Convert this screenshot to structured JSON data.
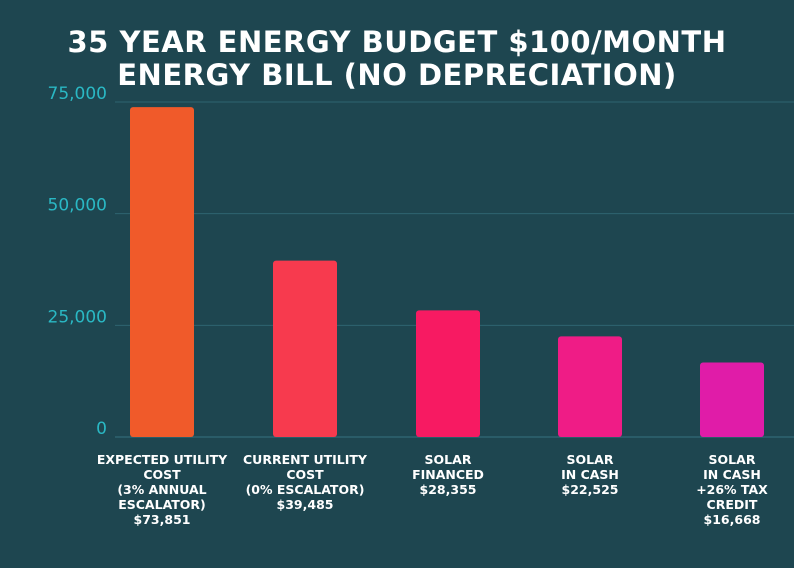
{
  "title_lines": [
    "35 YEAR ENERGY BUDGET $100/MONTH",
    "ENERGY BILL (NO DEPRECIATION)"
  ],
  "colors": {
    "background": "#1e4650",
    "grid": "#2f6470",
    "tick_label": "#2ab8c4",
    "bars": [
      "#f05a2a",
      "#f73a4e",
      "#f71a62",
      "#ef1c86",
      "#e01ca8"
    ]
  },
  "chart_data": {
    "type": "bar",
    "title": "35 YEAR ENERGY BUDGET $100/MONTH ENERGY BILL (NO DEPRECIATION)",
    "categories": [
      "EXPECTED UTILITY COST (3% ANNUAL ESCALATOR)",
      "CURRENT UTILITY COST (0% ESCALATOR)",
      "SOLAR FINANCED",
      "SOLAR IN CASH",
      "SOLAR IN CASH +26% TAX CREDIT"
    ],
    "category_label_lines": [
      [
        "EXPECTED UTILITY",
        "COST",
        "(3% ANNUAL",
        "ESCALATOR)",
        "$73,851"
      ],
      [
        "CURRENT UTILITY",
        "COST",
        "(0% ESCALATOR)",
        "$39,485"
      ],
      [
        "SOLAR",
        "FINANCED",
        "$28,355"
      ],
      [
        "SOLAR",
        "IN CASH",
        "$22,525"
      ],
      [
        "SOLAR",
        "IN CASH",
        "+26% TAX",
        "CREDIT",
        "$16,668"
      ]
    ],
    "values": [
      73851,
      39485,
      28355,
      22525,
      16668
    ],
    "yticks": [
      0,
      25000,
      50000,
      75000
    ],
    "ytick_labels": [
      "0",
      "25,000",
      "50,000",
      "75,000"
    ],
    "ylim": [
      0,
      75000
    ],
    "xlabel": "",
    "ylabel": "",
    "grid": true,
    "legend": "none"
  }
}
